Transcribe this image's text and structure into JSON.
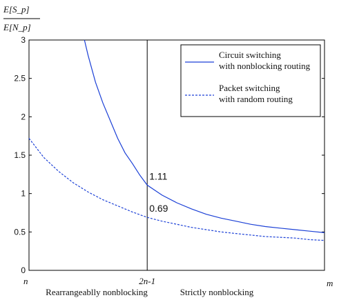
{
  "chart_data": {
    "type": "line",
    "ylabel": {
      "numerator": "E[S_p]",
      "denominator": "E[N_p]"
    },
    "xlabel": "m",
    "ylim": [
      0,
      3
    ],
    "yticks": [
      0,
      0.5,
      1,
      1.5,
      2,
      2.5,
      3
    ],
    "ytick_labels": [
      "0",
      "0.5",
      "1",
      "1.5",
      "2",
      "2.5",
      "3"
    ],
    "xlim": [
      0,
      1
    ],
    "x_axis_markers": [
      {
        "label": "n",
        "x": 0
      },
      {
        "label": "2n-1",
        "x": 0.4
      }
    ],
    "regions": [
      {
        "label": "Rearrangeablly nonblocking"
      },
      {
        "label": "Strictly nonblocking"
      }
    ],
    "reference_line_x": 0.4,
    "series": [
      {
        "name_line1": "Circuit switching",
        "name_line2": "with nonblocking routing",
        "style": "solid",
        "color": "#1a3fd6",
        "x": [
          0.1875,
          0.2,
          0.225,
          0.25,
          0.275,
          0.3,
          0.325,
          0.35,
          0.375,
          0.4,
          0.45,
          0.5,
          0.55,
          0.6,
          0.65,
          0.7,
          0.75,
          0.8,
          0.85,
          0.9,
          0.95,
          1.0
        ],
        "y": [
          3.0,
          2.8,
          2.45,
          2.18,
          1.95,
          1.72,
          1.53,
          1.39,
          1.24,
          1.11,
          0.98,
          0.88,
          0.8,
          0.73,
          0.68,
          0.64,
          0.6,
          0.57,
          0.55,
          0.53,
          0.51,
          0.49
        ]
      },
      {
        "name_line1": "Packet switching",
        "name_line2": "with random routing",
        "style": "dashed",
        "color": "#1a3fd6",
        "x": [
          0.0,
          0.05,
          0.1,
          0.15,
          0.2,
          0.25,
          0.3,
          0.35,
          0.4,
          0.45,
          0.5,
          0.55,
          0.6,
          0.65,
          0.7,
          0.75,
          0.8,
          0.85,
          0.9,
          0.95,
          1.0
        ],
        "y": [
          1.72,
          1.47,
          1.29,
          1.14,
          1.02,
          0.92,
          0.84,
          0.76,
          0.69,
          0.64,
          0.6,
          0.56,
          0.53,
          0.5,
          0.48,
          0.46,
          0.44,
          0.43,
          0.42,
          0.4,
          0.39
        ]
      }
    ],
    "annotations": [
      {
        "text": "1.11",
        "x": 0.4,
        "y": 1.11
      },
      {
        "text": "0.69",
        "x": 0.4,
        "y": 0.69
      }
    ],
    "legend": "top-right"
  }
}
